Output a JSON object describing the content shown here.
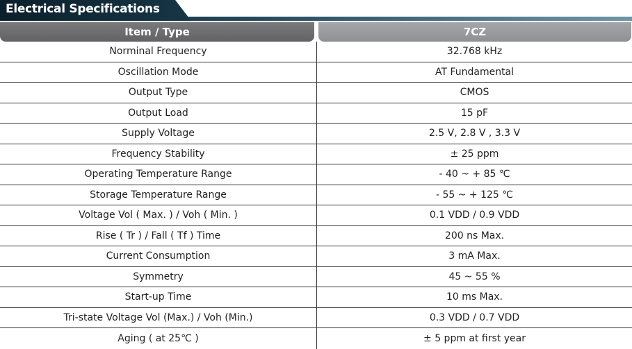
{
  "title": "Electrical Specifications",
  "header": {
    "item": "Item / Type",
    "model": "7CZ"
  },
  "rows": [
    {
      "item": "Norminal Frequency",
      "value": "32.768 kHz"
    },
    {
      "item": "Oscillation Mode",
      "value": "AT Fundamental"
    },
    {
      "item": "Output Type",
      "value": "CMOS"
    },
    {
      "item": "Output Load",
      "value": "15 pF"
    },
    {
      "item": "Supply Voltage",
      "value": "2.5 V, 2.8 V , 3.3 V"
    },
    {
      "item": "Frequency Stability",
      "value": "± 25 ppm"
    },
    {
      "item": "Operating Temperature Range",
      "value": "- 40 ~ + 85 ℃"
    },
    {
      "item": "Storage Temperature Range",
      "value": "- 55 ~ + 125 ℃"
    },
    {
      "item": "Voltage Vol ( Max. ) / Voh ( Min. )",
      "value": "0.1 VDD / 0.9 VDD"
    },
    {
      "item": "Rise ( Tr ) / Fall ( Tf ) Time",
      "value": "200 ns Max."
    },
    {
      "item": "Current Consumption",
      "value": "3 mA Max."
    },
    {
      "item": "Symmetry",
      "value": "45 ~ 55 %"
    },
    {
      "item": "Start-up Time",
      "value": "10 ms Max."
    },
    {
      "item": "Tri-state Voltage Vol (Max.) / Voh (Min.)",
      "value": "0.3 VDD / 0.7 VDD"
    },
    {
      "item": "Aging ( at 25℃ )",
      "value": "± 5 ppm at first year"
    }
  ]
}
